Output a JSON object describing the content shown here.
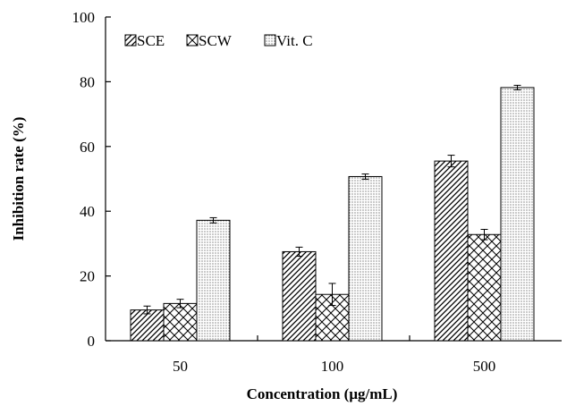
{
  "chart_data": {
    "type": "bar",
    "title": "",
    "xlabel": "Concentration (μg/mL)",
    "ylabel": "Inhibition rate (%)",
    "categories": [
      "50",
      "100",
      "500"
    ],
    "ylim": [
      0,
      100
    ],
    "yticks": [
      0,
      20,
      40,
      60,
      80,
      100
    ],
    "grid": false,
    "legend_position": "top-left",
    "series": [
      {
        "name": "SCE",
        "pattern": "diagonal-hatch",
        "values": [
          9.5,
          27.5,
          55.5
        ],
        "errors": [
          1.2,
          1.4,
          1.8
        ]
      },
      {
        "name": "SCW",
        "pattern": "crosshatch",
        "values": [
          11.5,
          14.3,
          32.8
        ],
        "errors": [
          1.3,
          3.4,
          1.6
        ]
      },
      {
        "name": "Vit. C",
        "pattern": "dots",
        "values": [
          37.2,
          50.7,
          78.2
        ],
        "errors": [
          0.8,
          0.8,
          0.7
        ]
      }
    ]
  }
}
